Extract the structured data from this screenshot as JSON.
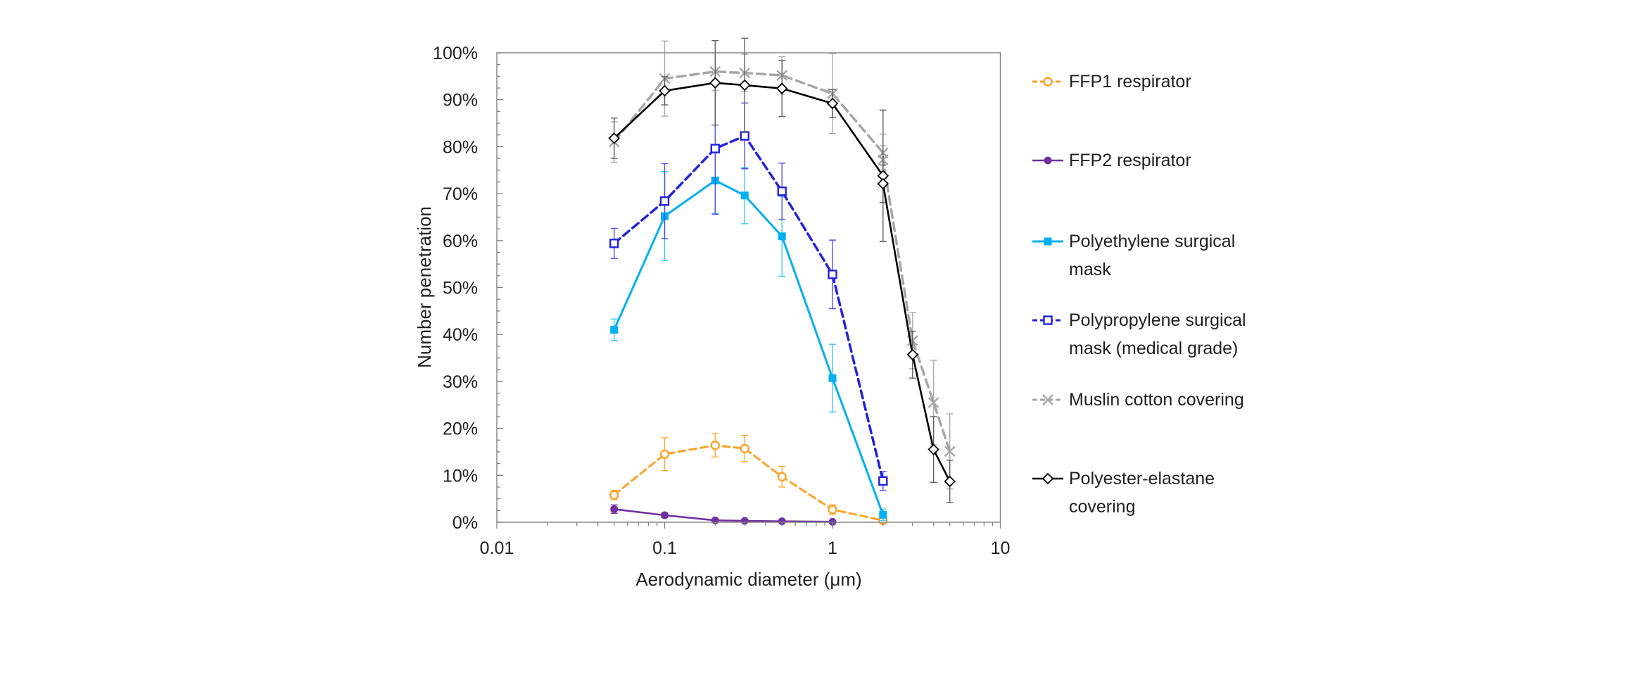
{
  "figure": {
    "background": "#FFFFFF",
    "frame_color": "#808080",
    "text_color": "#1F1F1F"
  },
  "chart_data": {
    "type": "line",
    "title": "",
    "xlabel": "Aerodynamic diameter (μm)",
    "ylabel": "Number penetration",
    "x_scale": "log",
    "xlim": [
      0.01,
      10
    ],
    "ylim_percent": [
      0,
      100
    ],
    "grid": false,
    "legend_position": "right",
    "x_tick_values": [
      0.01,
      0.1,
      1,
      10
    ],
    "x_tick_labels": [
      "0.01",
      "0.1",
      "1",
      "10"
    ],
    "y_tick_labels": [
      "0%",
      "10%",
      "20%",
      "30%",
      "40%",
      "50%",
      "60%",
      "70%",
      "80%",
      "90%",
      "100%"
    ],
    "y_major_step_percent": 10,
    "y_minor_step_percent": 2.5,
    "series": [
      {
        "name": "FFP1 respirator",
        "color": "#FFA226",
        "err_color": "#FFA226",
        "line": "dashed",
        "dash": "10 6",
        "width": 3,
        "marker": "circle-open",
        "x": [
          0.05,
          0.1,
          0.2,
          0.3,
          0.5,
          1,
          2
        ],
        "y_percent": [
          5.8,
          14.5,
          16.4,
          15.7,
          9.7,
          2.7,
          0.4
        ],
        "err_percent": [
          1.0,
          3.5,
          2.5,
          2.8,
          2.2,
          1.0,
          0.4
        ]
      },
      {
        "name": "FFP2 respirator",
        "color": "#7030A0",
        "err_color": "#7030A0",
        "line": "solid",
        "dash": "",
        "width": 2.6,
        "marker": "circle-filled",
        "x": [
          0.05,
          0.1,
          0.2,
          0.3,
          0.5,
          1
        ],
        "y_percent": [
          2.8,
          1.5,
          0.4,
          0.3,
          0.2,
          0.1
        ],
        "err_percent": [
          0.9,
          0.5,
          0.3,
          0.2,
          0.2,
          0.1
        ]
      },
      {
        "name": "Polyethylene surgical mask",
        "color": "#00B0F0",
        "err_color": "#33C4F5",
        "line": "solid",
        "dash": "",
        "width": 3,
        "marker": "square-filled",
        "x": [
          0.05,
          0.1,
          0.2,
          0.3,
          0.5,
          1,
          2
        ],
        "y_percent": [
          41.0,
          65.2,
          72.8,
          69.6,
          60.9,
          30.7,
          1.6
        ],
        "err_percent": [
          2.3,
          9.5,
          7.0,
          6.0,
          8.5,
          7.2,
          1.2
        ]
      },
      {
        "name": "Polypropylene surgical mask (medical grade)",
        "color": "#2222DD",
        "err_color": "#4A4AE8",
        "line": "dashed",
        "dash": "11 6",
        "width": 3.5,
        "marker": "square-open",
        "x": [
          0.05,
          0.1,
          0.2,
          0.3,
          0.5,
          1,
          2
        ],
        "y_percent": [
          59.4,
          68.4,
          79.6,
          82.3,
          70.5,
          52.8,
          8.8
        ],
        "err_percent": [
          3.2,
          8.0,
          14.0,
          7.0,
          6.0,
          7.3,
          2.0
        ]
      },
      {
        "name": "Muslin cotton covering",
        "color": "#A6A6A6",
        "err_color": "#A6A6A6",
        "line": "dashed",
        "dash": "12 7",
        "width": 3.5,
        "marker": "x",
        "x": [
          0.05,
          0.1,
          0.2,
          0.3,
          0.5,
          1,
          2,
          2,
          3,
          4,
          5
        ],
        "y_percent": [
          81.0,
          94.5,
          96.0,
          95.7,
          95.2,
          91.3,
          78.7,
          77.2,
          38.7,
          25.5,
          15.1
        ],
        "err_percent": [
          4.3,
          8.0,
          4.0,
          4.0,
          4.0,
          8.5,
          4.0,
          3.0,
          6.0,
          9.0,
          8.0
        ]
      },
      {
        "name": "Polyester-elastane covering",
        "color": "#000000",
        "err_color": "#595959",
        "line": "solid",
        "dash": "",
        "width": 2.6,
        "marker": "diamond-open",
        "x": [
          0.05,
          0.1,
          0.2,
          0.3,
          0.5,
          1,
          2,
          2,
          3,
          4,
          5
        ],
        "y_percent": [
          81.8,
          91.9,
          93.6,
          93.1,
          92.4,
          89.2,
          73.8,
          72.1,
          35.7,
          15.5,
          8.7
        ],
        "err_percent": [
          4.3,
          3.0,
          9.0,
          10.0,
          6.0,
          3.0,
          14.0,
          4.0,
          5.0,
          7.0,
          4.5
        ]
      }
    ]
  },
  "legend": {
    "items": [
      {
        "label": "FFP1 respirator"
      },
      {
        "label": "FFP2 respirator"
      },
      {
        "label": "Polyethylene surgical\nmask"
      },
      {
        "label": "Polypropylene surgical\nmask (medical grade)"
      },
      {
        "label": "Muslin cotton covering"
      },
      {
        "label": "Polyester-elastane\ncovering"
      }
    ]
  }
}
